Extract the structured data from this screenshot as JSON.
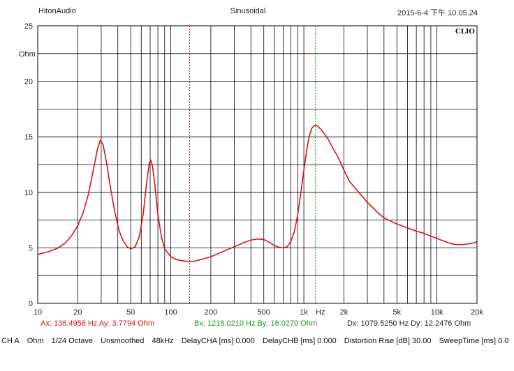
{
  "header": {
    "left": "HitonAudio",
    "center": "Sinusoidal",
    "right": "2015-6-4 下午 10.05.24"
  },
  "brand": "CLIO",
  "colors": {
    "curve": "#dd1111",
    "cursorA": "#dd1111",
    "cursorB": "#119911",
    "grid": "#000000"
  },
  "cursor_readout": {
    "a": "Ax: 138.4958 Hz   Ay: 3.7794 Ohm",
    "b": "Bx: 1218.0210 Hz   By: 16.0270 Ohm",
    "d": "Dx: 1079.5250 Hz   Dy: 12.2476 Ohm"
  },
  "status_bar": [
    "CH A",
    "Ohm",
    "1/24 Octave",
    "Unsmoothed",
    "48kHz",
    "DelayCHA [ms] 0.000",
    "DelayCHB [ms] 0.000",
    "Distortion Rise [dB] 30.00",
    "SweepTime [ms] 0.0"
  ],
  "chart_data": {
    "type": "line",
    "title": "",
    "xlabel": "Hz",
    "ylabel": "Ohm",
    "x_scale": "log",
    "xlim": [
      10,
      20000
    ],
    "ylim": [
      0,
      25
    ],
    "grid": true,
    "x_tick_labels": [
      {
        "x": 10,
        "label": "10"
      },
      {
        "x": 20,
        "label": "20"
      },
      {
        "x": 50,
        "label": "50"
      },
      {
        "x": 100,
        "label": "100"
      },
      {
        "x": 200,
        "label": "200"
      },
      {
        "x": 500,
        "label": "500"
      },
      {
        "x": 1000,
        "label": "1k"
      },
      {
        "x": 2000,
        "label": "2k"
      },
      {
        "x": 5000,
        "label": "5k"
      },
      {
        "x": 10000,
        "label": "10k"
      },
      {
        "x": 20000,
        "label": "20k"
      }
    ],
    "y_tick_labels": [
      {
        "y": 0,
        "label": "0"
      },
      {
        "y": 5,
        "label": "5"
      },
      {
        "y": 10,
        "label": "10"
      },
      {
        "y": 15,
        "label": "15"
      },
      {
        "y": 20,
        "label": "20"
      },
      {
        "y": 25,
        "label": "25"
      }
    ],
    "cursors": [
      {
        "name": "A",
        "x": 138.4958,
        "y": 3.7794
      },
      {
        "name": "B",
        "x": 1218.021,
        "y": 16.027
      }
    ],
    "series": [
      {
        "x": [
          10,
          12,
          14,
          16,
          18,
          20,
          22,
          24,
          26,
          28,
          29.5,
          31,
          33,
          35,
          38,
          41,
          44,
          47,
          50,
          54,
          58,
          62,
          66,
          69,
          71,
          73,
          76,
          80,
          85,
          90,
          100,
          110,
          120,
          130,
          138.5,
          150,
          170,
          200,
          250,
          300,
          350,
          400,
          450,
          500,
          550,
          600,
          650,
          700,
          750,
          800,
          850,
          900,
          950,
          1000,
          1050,
          1100,
          1150,
          1200,
          1250,
          1300,
          1400,
          1500,
          1600,
          1800,
          2000,
          2200,
          2500,
          3000,
          3500,
          4000,
          5000,
          6000,
          7000,
          8000,
          9000,
          10000,
          11000,
          12000,
          13000,
          14000,
          15000,
          16000,
          17000,
          18000,
          19000,
          20000
        ],
        "y": [
          4.4,
          4.65,
          4.95,
          5.4,
          6.1,
          7.0,
          8.2,
          9.8,
          11.8,
          13.8,
          14.7,
          14.3,
          12.6,
          10.6,
          8.2,
          6.5,
          5.6,
          5.1,
          4.9,
          5.1,
          6.0,
          8.0,
          11.0,
          12.7,
          12.9,
          12.3,
          10.6,
          8.0,
          6.0,
          4.9,
          4.2,
          3.95,
          3.85,
          3.8,
          3.78,
          3.8,
          3.95,
          4.2,
          4.7,
          5.1,
          5.45,
          5.7,
          5.8,
          5.75,
          5.5,
          5.2,
          5.05,
          5.0,
          5.1,
          5.6,
          6.5,
          8.0,
          10.0,
          12.0,
          13.8,
          15.1,
          15.8,
          16.03,
          16.0,
          15.85,
          15.4,
          14.9,
          14.3,
          13.2,
          12.0,
          11.0,
          10.2,
          9.1,
          8.3,
          7.7,
          7.15,
          6.8,
          6.5,
          6.3,
          6.05,
          5.85,
          5.65,
          5.5,
          5.35,
          5.3,
          5.3,
          5.3,
          5.35,
          5.4,
          5.45,
          5.55
        ]
      }
    ]
  }
}
